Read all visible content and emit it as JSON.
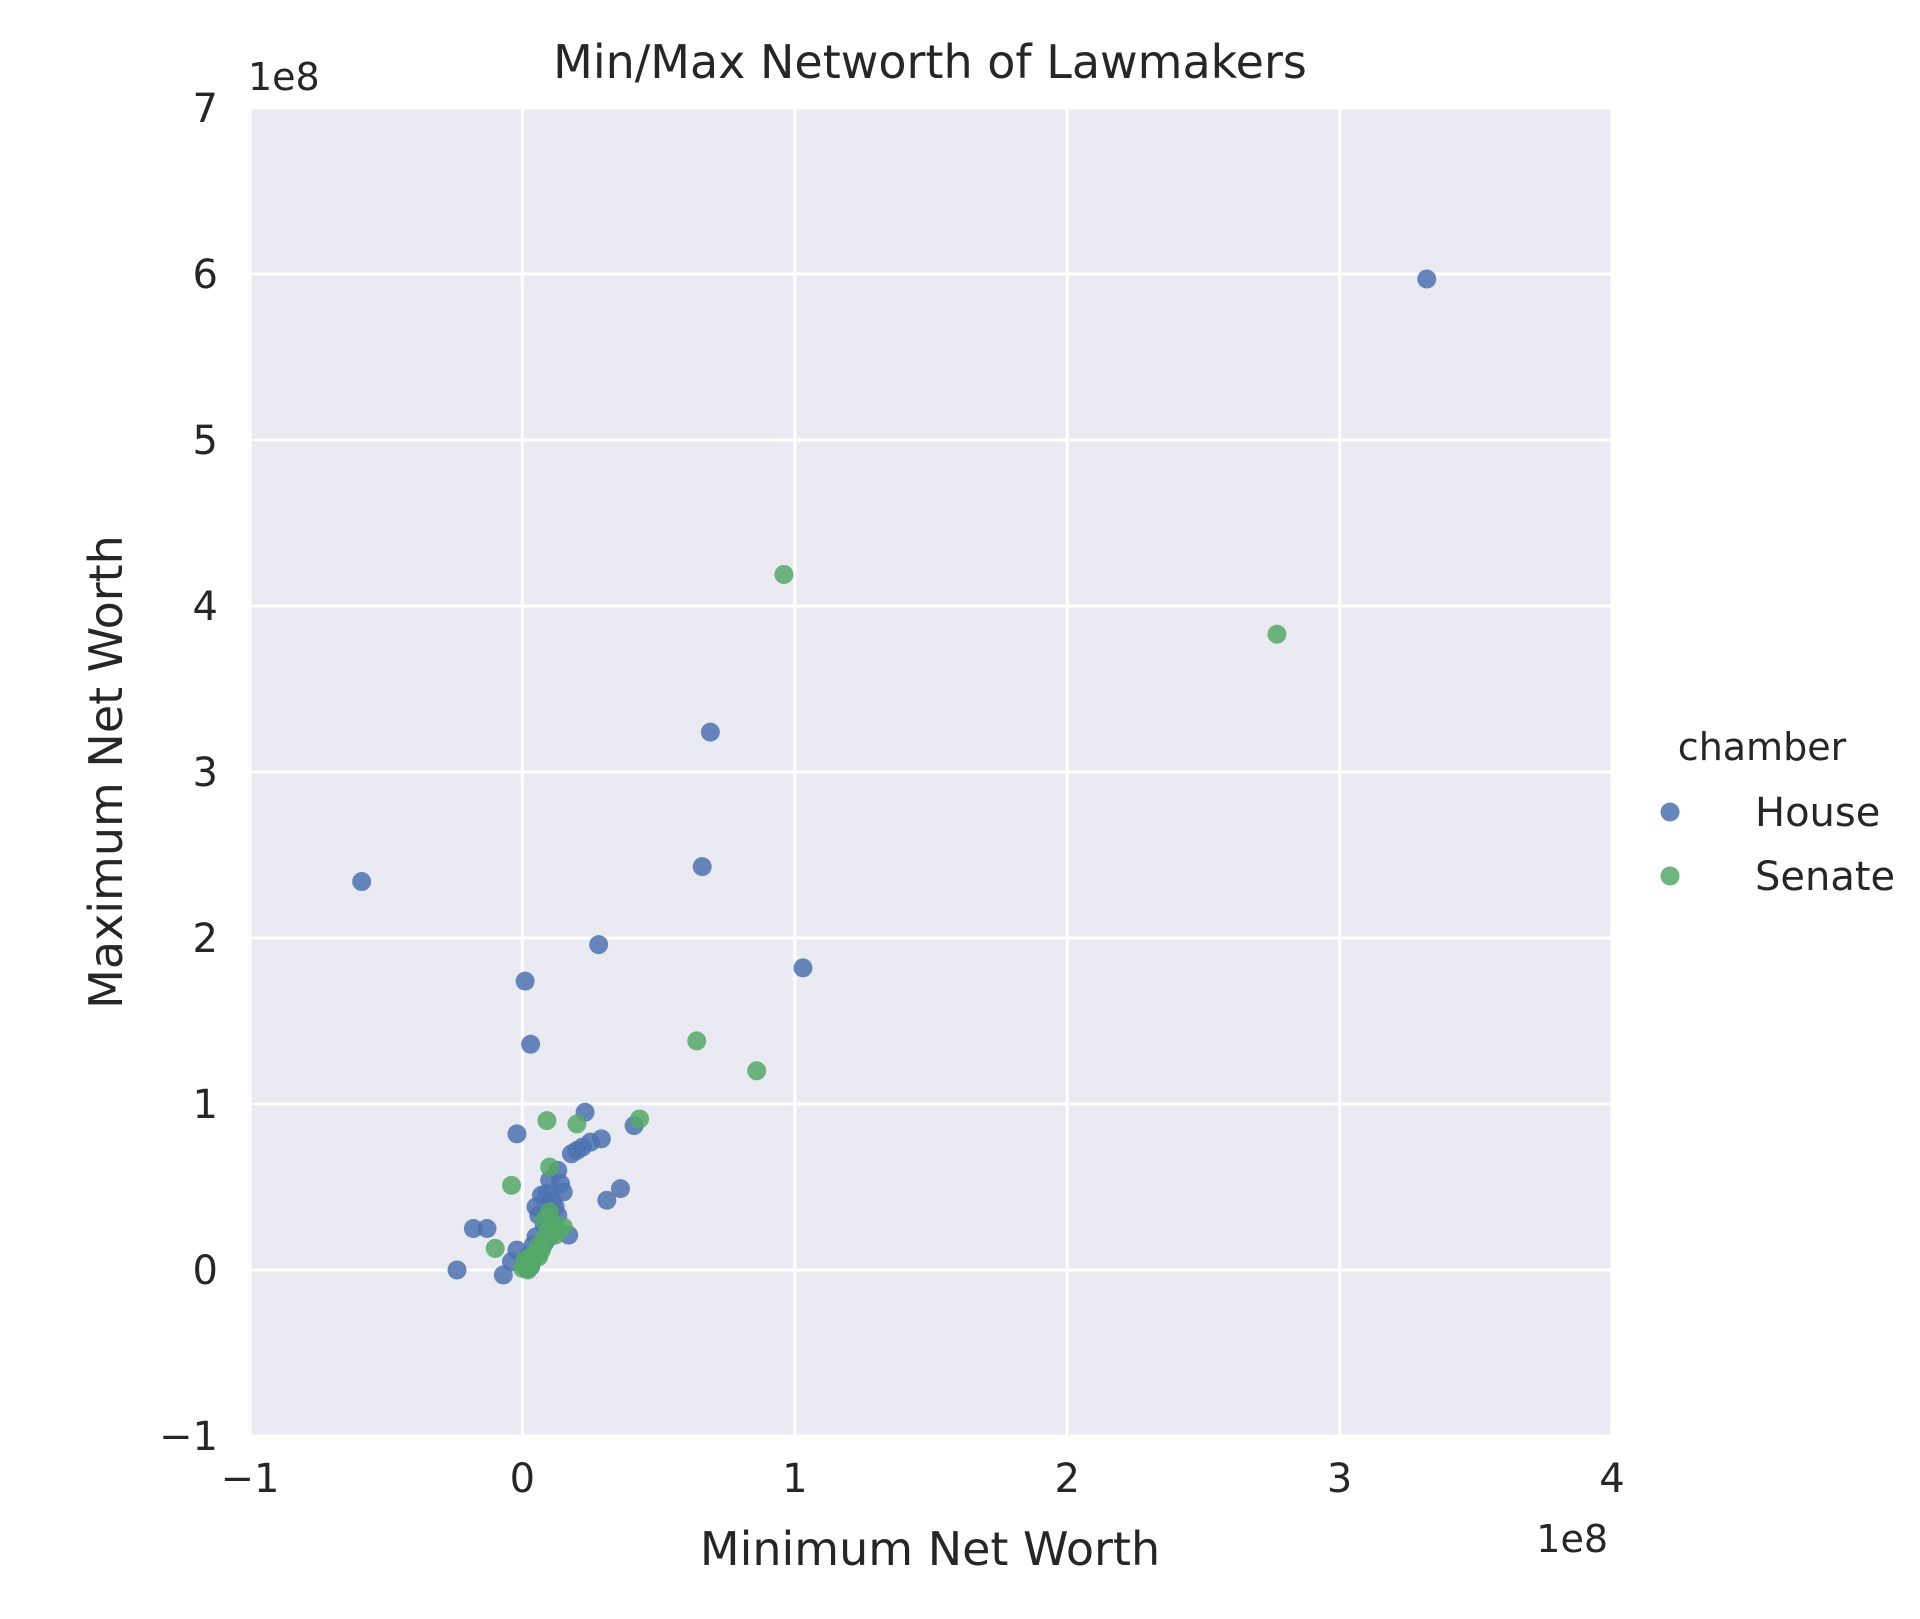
{
  "chart_data": {
    "type": "scatter",
    "title": "Min/Max Networth of Lawmakers",
    "xlabel": "Minimum Net Worth",
    "ylabel": "Maximum Net Worth",
    "x_offset_label": "1e8",
    "y_offset_label": "1e8",
    "xlim": [
      -1,
      4
    ],
    "ylim": [
      -1,
      7
    ],
    "x_ticks": [
      -1,
      0,
      1,
      2,
      3,
      4
    ],
    "y_ticks": [
      -1,
      0,
      1,
      2,
      3,
      4,
      5,
      6,
      7
    ],
    "x_tick_labels": [
      "−1",
      "0",
      "1",
      "2",
      "3",
      "4"
    ],
    "y_tick_labels": [
      "−1",
      "0",
      "1",
      "2",
      "3",
      "4",
      "5",
      "6",
      "7"
    ],
    "units": "1e8",
    "grid": true,
    "legend_title": "chamber",
    "legend_position": "right",
    "series": [
      {
        "name": "House",
        "color": "#4c72b0",
        "points": [
          [
            3.32,
            5.97
          ],
          [
            0.69,
            3.24
          ],
          [
            0.66,
            2.43
          ],
          [
            -0.59,
            2.34
          ],
          [
            0.28,
            1.96
          ],
          [
            1.03,
            1.82
          ],
          [
            0.01,
            1.74
          ],
          [
            0.03,
            1.36
          ],
          [
            -0.02,
            0.82
          ],
          [
            0.23,
            0.95
          ],
          [
            0.29,
            0.79
          ],
          [
            0.41,
            0.87
          ],
          [
            0.2,
            0.72
          ],
          [
            0.25,
            0.77
          ],
          [
            0.36,
            0.49
          ],
          [
            0.31,
            0.42
          ],
          [
            0.13,
            0.6
          ],
          [
            0.1,
            0.54
          ],
          [
            0.15,
            0.47
          ],
          [
            0.07,
            0.45
          ],
          [
            0.12,
            0.38
          ],
          [
            0.06,
            0.33
          ],
          [
            0.17,
            0.21
          ],
          [
            0.08,
            0.27
          ],
          [
            0.05,
            0.2
          ],
          [
            -0.13,
            0.25
          ],
          [
            -0.18,
            0.25
          ],
          [
            -0.24,
            0.0
          ],
          [
            -0.07,
            -0.03
          ],
          [
            -0.04,
            0.05
          ],
          [
            -0.02,
            0.12
          ],
          [
            0.02,
            0.08
          ],
          [
            0.04,
            0.15
          ],
          [
            0.09,
            0.3
          ],
          [
            0.11,
            0.42
          ],
          [
            0.14,
            0.52
          ],
          [
            0.18,
            0.7
          ],
          [
            0.22,
            0.74
          ],
          [
            0.03,
            0.02
          ],
          [
            0.01,
            0.05
          ],
          [
            0.06,
            0.1
          ],
          [
            0.08,
            0.16
          ],
          [
            0.02,
            0.01
          ],
          [
            0.04,
            0.06
          ],
          [
            0.1,
            0.2
          ],
          [
            0.13,
            0.33
          ],
          [
            0.05,
            0.38
          ],
          [
            0.09,
            0.46
          ]
        ]
      },
      {
        "name": "Senate",
        "color": "#55a868",
        "points": [
          [
            0.96,
            4.19
          ],
          [
            2.77,
            3.83
          ],
          [
            0.64,
            1.38
          ],
          [
            0.86,
            1.2
          ],
          [
            0.43,
            0.91
          ],
          [
            0.09,
            0.9
          ],
          [
            0.2,
            0.88
          ],
          [
            0.1,
            0.62
          ],
          [
            -0.04,
            0.51
          ],
          [
            -0.1,
            0.13
          ],
          [
            0.15,
            0.26
          ],
          [
            0.1,
            0.35
          ],
          [
            0.12,
            0.21
          ],
          [
            0.06,
            0.15
          ],
          [
            0.08,
            0.18
          ],
          [
            0.03,
            0.08
          ],
          [
            0.02,
            0.04
          ],
          [
            0.05,
            0.1
          ],
          [
            0.01,
            0.02
          ],
          [
            0.04,
            0.06
          ],
          [
            0.0,
            0.01
          ],
          [
            0.07,
            0.12
          ],
          [
            0.09,
            0.22
          ],
          [
            0.11,
            0.28
          ],
          [
            0.02,
            0.0
          ],
          [
            0.03,
            0.03
          ],
          [
            0.06,
            0.08
          ],
          [
            0.01,
            0.06
          ],
          [
            0.13,
            0.24
          ],
          [
            0.08,
            0.3
          ]
        ]
      }
    ]
  }
}
